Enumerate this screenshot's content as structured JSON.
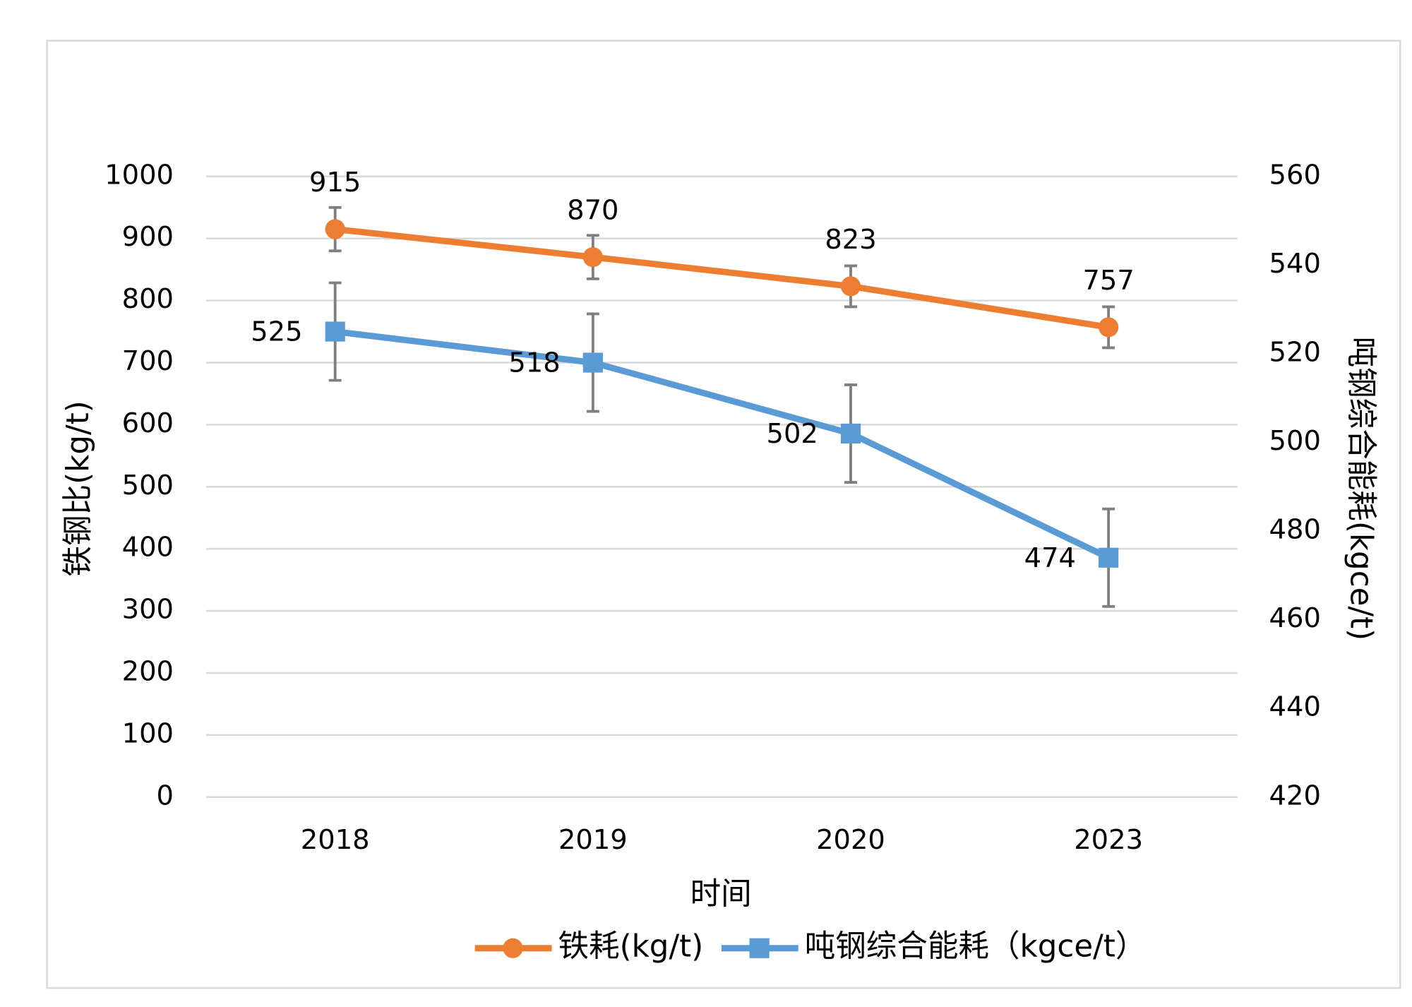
{
  "chart_data": {
    "type": "line",
    "categories": [
      "2018",
      "2019",
      "2020",
      "2023"
    ],
    "xlabel": "时间",
    "ylabel": "铁钢比(kg/t)",
    "y2label": "吨钢综合能耗(kgce/t)",
    "ylim": [
      0,
      1000
    ],
    "yticks": [
      0,
      100,
      200,
      300,
      400,
      500,
      600,
      700,
      800,
      900,
      1000
    ],
    "y2lim": [
      420,
      560
    ],
    "y2ticks": [
      420,
      440,
      460,
      480,
      500,
      520,
      540,
      560
    ],
    "grid": true,
    "legend": "bottom",
    "series": [
      {
        "name": "铁耗(kg/t)",
        "color": "#ed7d31",
        "marker": "circle",
        "values": [
          915,
          870,
          823,
          757
        ],
        "errors": [
          35,
          35,
          33,
          33
        ]
      },
      {
        "name": "吨钢综合能耗（kgce/t）",
        "color": "#5b9bd5",
        "marker": "square",
        "axis": "y2",
        "values": [
          525,
          518,
          502,
          474
        ],
        "errors": [
          11,
          11,
          11,
          11
        ]
      }
    ]
  }
}
